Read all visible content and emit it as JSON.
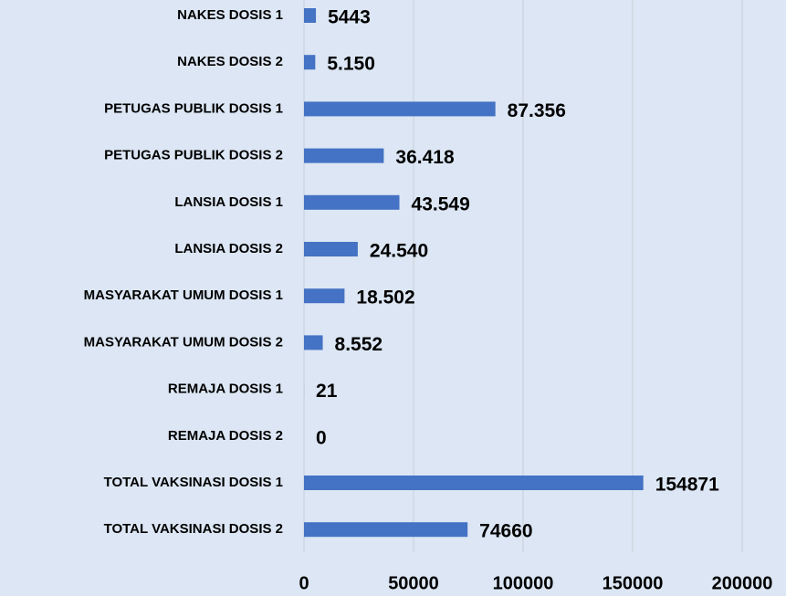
{
  "chart_data": {
    "type": "barh",
    "categories": [
      "NAKES DOSIS 1",
      "NAKES DOSIS 2",
      "PETUGAS PUBLIK DOSIS 1",
      "PETUGAS PUBLIK DOSIS 2",
      "LANSIA DOSIS 1",
      "LANSIA DOSIS 2",
      "MASYARAKAT UMUM DOSIS 1",
      "MASYARAKAT UMUM DOSIS 2",
      "REMAJA DOSIS 1",
      "REMAJA DOSIS 2",
      "TOTAL VAKSINASI DOSIS 1",
      "TOTAL VAKSINASI DOSIS 2"
    ],
    "values": [
      5443,
      5150,
      87356,
      36418,
      43549,
      24540,
      18502,
      8552,
      21,
      0,
      154871,
      74660
    ],
    "value_labels": [
      "5443",
      "5.150",
      "87.356",
      "36.418",
      "43.549",
      "24.540",
      "18.502",
      "8.552",
      "21",
      "0",
      "154871",
      "74660"
    ],
    "color": "#4472c4",
    "xlim": [
      0,
      200000
    ],
    "xticks": [
      0,
      50000,
      100000,
      150000,
      200000
    ],
    "grid": true
  }
}
